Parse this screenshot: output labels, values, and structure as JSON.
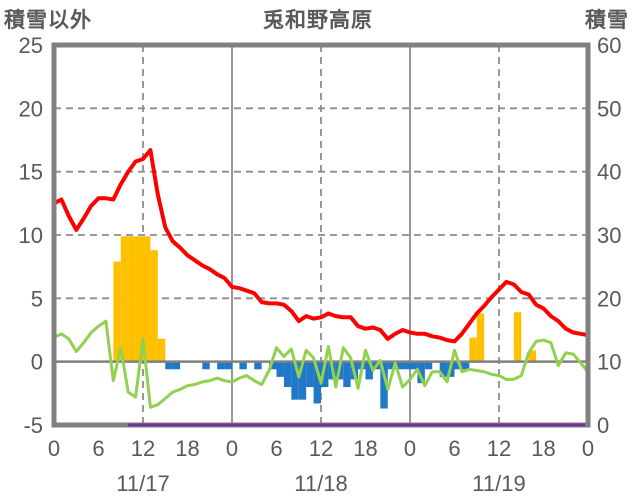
{
  "header": {
    "left_axis_title": "積雪以外",
    "title": "兎和野高原",
    "right_axis_title": "積雪"
  },
  "chart_data": {
    "type": "line+bar",
    "title": "兎和野高原",
    "x": {
      "total_hours": 72,
      "hours_per_day": 24,
      "hour_tick_step": 6,
      "hour_tick_labels": [
        "0",
        "6",
        "12",
        "18"
      ],
      "dates": [
        "11/17",
        "11/18",
        "11/19"
      ]
    },
    "left_axis": {
      "title": "積雪以外",
      "min": -5,
      "max": 25,
      "ticks": [
        25,
        20,
        15,
        10,
        5,
        0,
        -5
      ]
    },
    "right_axis": {
      "title": "積雪",
      "min": 0,
      "max": 60,
      "ticks": [
        60,
        50,
        40,
        30,
        20,
        10,
        0
      ]
    },
    "grid": {
      "horizontal_dashed_left_values": [
        20,
        15,
        10,
        5
      ],
      "vertical_dashed_hours": [
        12,
        36,
        60
      ],
      "vertical_solid_hours": [
        24,
        48
      ],
      "zero_line_left_value": 0
    },
    "colors": {
      "red_line": "#FF0000",
      "green_line": "#92D050",
      "orange_bars": "#FFC000",
      "blue_bars": "#1F78C8",
      "purple_line": "#7030A0",
      "axis_gray": "#808080",
      "grid_gray": "#8C8C8C",
      "text_gray": "#595959"
    },
    "series": {
      "red_line": {
        "type": "line",
        "axis": "left",
        "values": [
          12.5,
          12.8,
          11.5,
          10.4,
          11.3,
          12.3,
          12.9,
          12.9,
          12.8,
          14.0,
          15.0,
          15.8,
          16.0,
          16.7,
          13.2,
          10.6,
          9.5,
          9.0,
          8.4,
          8.0,
          7.6,
          7.3,
          6.9,
          6.6,
          5.9,
          5.8,
          5.6,
          5.4,
          4.7,
          4.6,
          4.6,
          4.5,
          4.0,
          3.2,
          3.6,
          3.4,
          3.5,
          3.8,
          3.6,
          3.5,
          3.5,
          2.8,
          2.6,
          2.7,
          2.5,
          1.8,
          2.2,
          2.5,
          2.3,
          2.2,
          2.2,
          2.0,
          1.9,
          1.7,
          1.6,
          2.2,
          3.0,
          3.8,
          4.4,
          5.1,
          5.7,
          6.3,
          6.1,
          5.5,
          5.3,
          4.5,
          4.2,
          3.6,
          3.2,
          2.6,
          2.3,
          2.2,
          2.1
        ]
      },
      "green_line": {
        "type": "line",
        "axis": "left",
        "values": [
          1.9,
          2.2,
          1.8,
          0.8,
          1.5,
          2.3,
          2.8,
          3.2,
          -1.5,
          1.1,
          -2.4,
          -2.8,
          1.8,
          -3.6,
          -3.4,
          -2.9,
          -2.4,
          -2.2,
          -1.9,
          -1.8,
          -1.6,
          -1.5,
          -1.3,
          -1.5,
          -1.6,
          -1.3,
          -1.1,
          -1.5,
          -1.8,
          -0.7,
          1.1,
          0.4,
          1.0,
          -1.2,
          0.9,
          0.3,
          -1.7,
          1.2,
          -2.0,
          1.1,
          0.3,
          -2.1,
          0.9,
          -0.7,
          0.1,
          -2.2,
          -0.1,
          -2.0,
          -1.4,
          -0.6,
          -1.9,
          -0.8,
          -0.8,
          -1.6,
          0.9,
          -0.8,
          -0.6,
          -0.7,
          -0.8,
          -1.0,
          -1.1,
          -1.4,
          -1.4,
          -1.1,
          0.7,
          1.6,
          1.7,
          1.5,
          -0.3,
          0.7,
          0.6,
          -0.1,
          -0.8
        ]
      },
      "orange_bars": {
        "type": "bar",
        "axis": "left",
        "values": [
          0,
          0,
          0,
          0,
          0,
          0,
          0,
          0,
          7.9,
          9.9,
          9.9,
          9.9,
          9.9,
          8.8,
          1.8,
          0,
          0,
          0,
          0,
          0,
          0,
          0,
          0,
          0,
          0,
          0,
          0,
          0,
          0,
          0,
          0,
          0,
          0,
          0,
          0,
          0,
          0,
          0,
          0,
          0,
          0,
          0,
          0,
          0,
          0,
          0,
          0,
          0,
          0,
          0,
          0,
          0,
          0,
          0,
          0,
          0,
          1.9,
          3.8,
          0,
          0,
          0,
          0,
          3.9,
          0,
          0.9,
          0,
          0,
          0,
          0,
          0,
          0,
          0
        ]
      },
      "blue_bars": {
        "type": "bar",
        "axis": "left",
        "values": [
          0,
          0,
          0,
          0,
          0,
          0,
          0,
          0,
          0,
          0,
          0,
          0,
          0,
          0,
          0,
          -0.6,
          -0.6,
          0,
          0,
          0,
          -0.6,
          0,
          -0.6,
          -0.6,
          0,
          -0.6,
          0,
          -0.6,
          0,
          -0.6,
          -1.2,
          -2.0,
          -3.0,
          -3.0,
          -2.0,
          -3.3,
          -2.0,
          -1.4,
          -1.4,
          -2.0,
          -1.4,
          -0.6,
          -1.4,
          -0.6,
          -3.7,
          -0.6,
          -0.6,
          -0.6,
          -0.6,
          -1.7,
          -0.6,
          0,
          -1.2,
          -1.2,
          -0.6,
          -0.6,
          0,
          0,
          0,
          0,
          0,
          0,
          0,
          0,
          0,
          0,
          0,
          0,
          0,
          0,
          0,
          0
        ]
      },
      "purple_line": {
        "type": "line",
        "axis": "right",
        "constant_value": 0,
        "start_hour": 10,
        "end_hour": 72
      }
    }
  }
}
